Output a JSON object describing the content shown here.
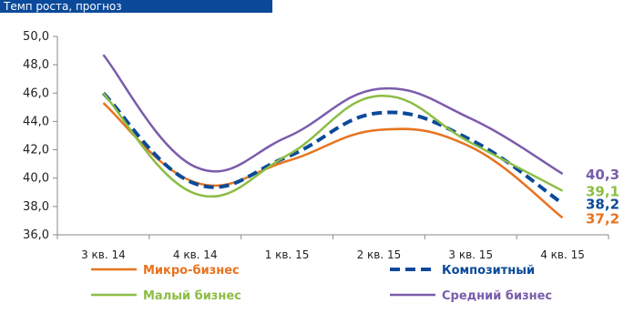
{
  "banner": {
    "text": "Темп роста, прогноз",
    "color": "#0b4a9a"
  },
  "chart_data": {
    "type": "line",
    "title": "",
    "xlabel": "",
    "ylabel": "",
    "categories": [
      "3 кв. 14",
      "4 кв. 14",
      "1 кв. 15",
      "2 кв. 15",
      "3 кв. 15",
      "4 кв. 15"
    ],
    "yticks": [
      "36,0",
      "38,0",
      "40,0",
      "42,0",
      "44,0",
      "46,0",
      "48,0",
      "50,0"
    ],
    "ylim": [
      36,
      50
    ],
    "grid": false,
    "legend_position": "bottom",
    "series": [
      {
        "name": "Микро-бизнес",
        "values": [
          45.3,
          39.7,
          41.2,
          43.4,
          42.2,
          37.2
        ],
        "color": "#e8731f",
        "dash": "solid",
        "end_label": "37,2"
      },
      {
        "name": "Композитный",
        "values": [
          46.0,
          39.6,
          41.5,
          44.6,
          42.7,
          38.2
        ],
        "color": "#0b4a9a",
        "dash": "dashed",
        "end_label": "38,2"
      },
      {
        "name": "Малый бизнес",
        "values": [
          46.0,
          38.9,
          41.6,
          45.8,
          42.5,
          39.1
        ],
        "color": "#8cbd45",
        "dash": "solid",
        "end_label": "39,1"
      },
      {
        "name": "Средний бизнес",
        "values": [
          48.7,
          40.8,
          42.9,
          46.3,
          44.2,
          40.3
        ],
        "color": "#7a5cac",
        "dash": "solid",
        "end_label": "40,3"
      }
    ]
  }
}
